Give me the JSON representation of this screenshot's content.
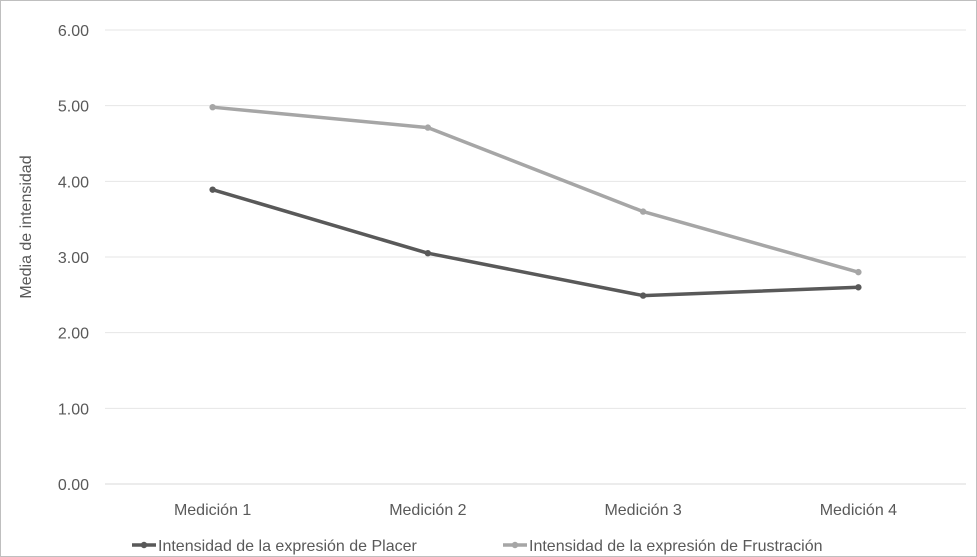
{
  "chart_data": {
    "type": "line",
    "title": "",
    "xlabel": "",
    "ylabel": "Media de intensidad",
    "ylim": [
      0,
      6
    ],
    "yticks": [
      "0.00",
      "1.00",
      "2.00",
      "3.00",
      "4.00",
      "5.00",
      "6.00"
    ],
    "categories": [
      "Medición 1",
      "Medición 2",
      "Medición 3",
      "Medición 4"
    ],
    "grid": true,
    "legend_position": "bottom",
    "series": [
      {
        "name": "Intensidad de la expresión de Placer",
        "color": "#595959",
        "values": [
          3.89,
          3.05,
          2.49,
          2.6
        ]
      },
      {
        "name": "Intensidad de la expresión de Frustración",
        "color": "#a6a6a6",
        "values": [
          4.98,
          4.71,
          3.6,
          2.8
        ]
      }
    ]
  }
}
